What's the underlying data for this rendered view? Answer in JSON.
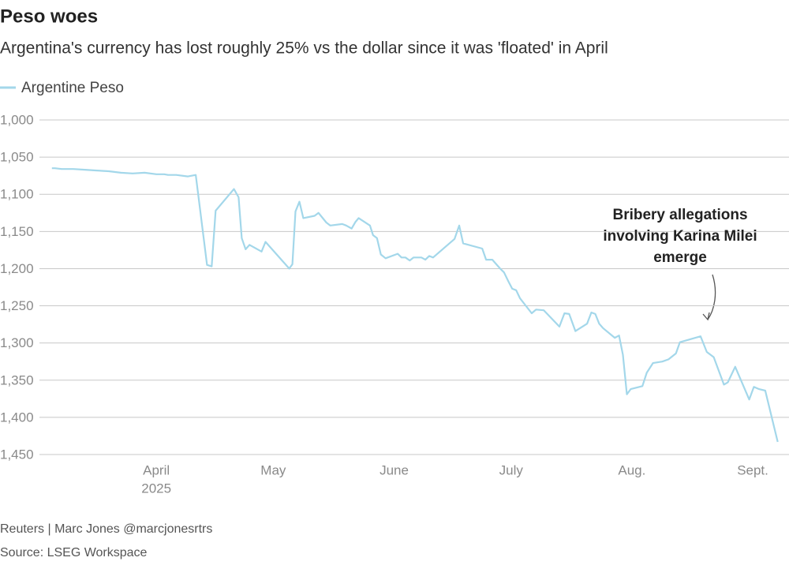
{
  "chart_data": {
    "type": "line",
    "title": "Peso woes",
    "subtitle": "Argentina's currency has lost roughly 25% vs the dollar since it was 'floated' in April",
    "series": [
      {
        "name": "Argentine Peso",
        "color": "#a3d7ea",
        "x": [
          4.2,
          5.0,
          6.7,
          9.7,
          12.7,
          15.8,
          18.8,
          21.9,
          24.9,
          28.0,
          31,
          33.0,
          34.0,
          36.1,
          39.1,
          41.1,
          44.0,
          45.2,
          46.2,
          50.9,
          52.1,
          52.9,
          53.9,
          54.9,
          58.0,
          59.0,
          65.1,
          65.9,
          66.7,
          67.7,
          68.7,
          71.6,
          72.6,
          74.6,
          75.6,
          78.7,
          79.7,
          81.1,
          82.1,
          82.9,
          85.8,
          86.6,
          87.6,
          88.6,
          89.8,
          92.9,
          93.9,
          94.9,
          96.0,
          97.0,
          99.0,
          100.0,
          101.0,
          102.0,
          107.5,
          108.7,
          109.7,
          114.6,
          115.6,
          117.2,
          119.2,
          120.2,
          121.3,
          122.3,
          123.3,
          124.3,
          127.3,
          128.4,
          130.4,
          134.4,
          135.7,
          136.9,
          138.5,
          141.5,
          142.6,
          143.6,
          144.6,
          145.6,
          148.6,
          149.7,
          150.7,
          151.7,
          152.7,
          155.7,
          156.8,
          158.4,
          160.8,
          162.4,
          164.3,
          165.3,
          170.6,
          172.2,
          174.0,
          176.6,
          177.6,
          179.5,
          183.1,
          184.3,
          185.6,
          187.2,
          190.4
        ],
        "values": [
          1065,
          1065,
          1066,
          1066,
          1067,
          1068,
          1069,
          1071,
          1072,
          1071,
          1073,
          1073,
          1074,
          1074,
          1076,
          1074,
          1195,
          1197,
          1122,
          1093,
          1104,
          1159,
          1174,
          1168,
          1177,
          1164,
          1200,
          1194,
          1123,
          1110,
          1132,
          1129,
          1125,
          1138,
          1142,
          1140,
          1142,
          1146,
          1137,
          1132,
          1142,
          1155,
          1159,
          1181,
          1186,
          1180,
          1185,
          1185,
          1189,
          1185,
          1185,
          1188,
          1183,
          1185,
          1160,
          1142,
          1166,
          1173,
          1188,
          1188,
          1200,
          1205,
          1217,
          1227,
          1229,
          1240,
          1260,
          1255,
          1256,
          1278,
          1260,
          1261,
          1284,
          1274,
          1259,
          1261,
          1274,
          1280,
          1293,
          1290,
          1316,
          1369,
          1362,
          1358,
          1340,
          1327,
          1325,
          1322,
          1314,
          1299,
          1291,
          1312,
          1319,
          1356,
          1353,
          1332,
          1376,
          1359,
          1362,
          1364,
          1433
        ]
      }
    ],
    "xlim": [
      0,
      193.3
    ],
    "xticks": [
      {
        "value": 31,
        "label": "April"
      },
      {
        "value": 61,
        "label": "May"
      },
      {
        "value": 92,
        "label": "June"
      },
      {
        "value": 122,
        "label": "July"
      },
      {
        "value": 153,
        "label": "Aug."
      },
      {
        "value": 184,
        "label": "Sept."
      }
    ],
    "year_label": "2025",
    "ylim": [
      1000,
      1450
    ],
    "y_inverted": true,
    "yticks": [
      {
        "value": 1000,
        "label": "1,000"
      },
      {
        "value": 1050,
        "label": "1,050"
      },
      {
        "value": 1100,
        "label": "1,100"
      },
      {
        "value": 1150,
        "label": "1,150"
      },
      {
        "value": 1200,
        "label": "1,200"
      },
      {
        "value": 1250,
        "label": "1,250"
      },
      {
        "value": 1300,
        "label": "1,300"
      },
      {
        "value": 1350,
        "label": "1,350"
      },
      {
        "value": 1400,
        "label": "1,400"
      },
      {
        "value": 1450,
        "label": "1,450"
      }
    ],
    "grid": true,
    "legend": "top-left",
    "annotation": [
      "Bribery allegations",
      "involving Karina Milei",
      "emerge"
    ],
    "credit": "Reuters | Marc Jones @marcjonesrtrs",
    "source": "Source: LSEG Workspace"
  }
}
